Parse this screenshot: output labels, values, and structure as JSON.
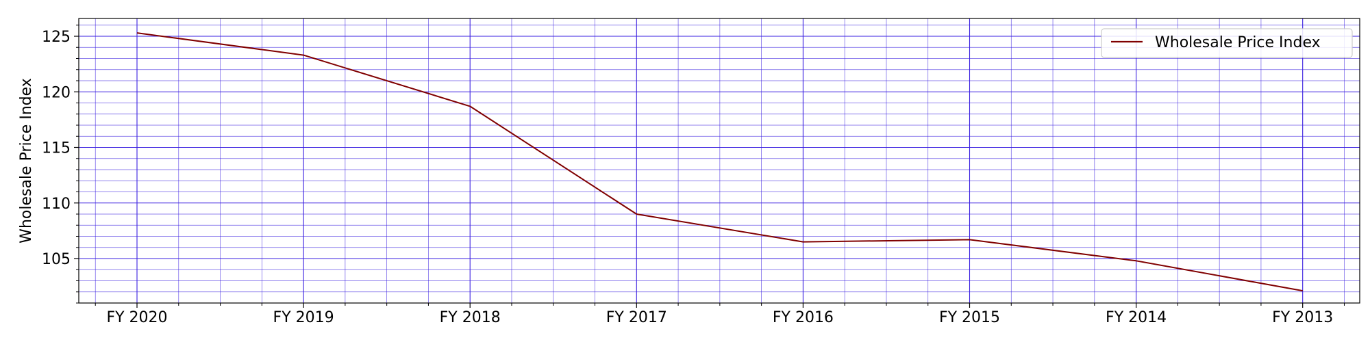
{
  "chart_data": {
    "type": "line",
    "categories": [
      "FY 2020",
      "FY 2019",
      "FY 2018",
      "FY 2017",
      "FY 2016",
      "FY 2015",
      "FY 2014",
      "FY 2013"
    ],
    "series": [
      {
        "name": "Wholesale Price Index",
        "values": [
          125.3,
          123.3,
          118.7,
          109.0,
          106.5,
          106.7,
          104.8,
          102.1
        ],
        "color": "#800000"
      }
    ],
    "xlabel": "",
    "ylabel": "Wholesale Price Index",
    "yticks": [
      105,
      110,
      115,
      120,
      125
    ],
    "ylim": [
      101.0,
      126.6
    ],
    "grid": true,
    "grid_color": "#3a1fe0",
    "legend_position": "top-right"
  }
}
